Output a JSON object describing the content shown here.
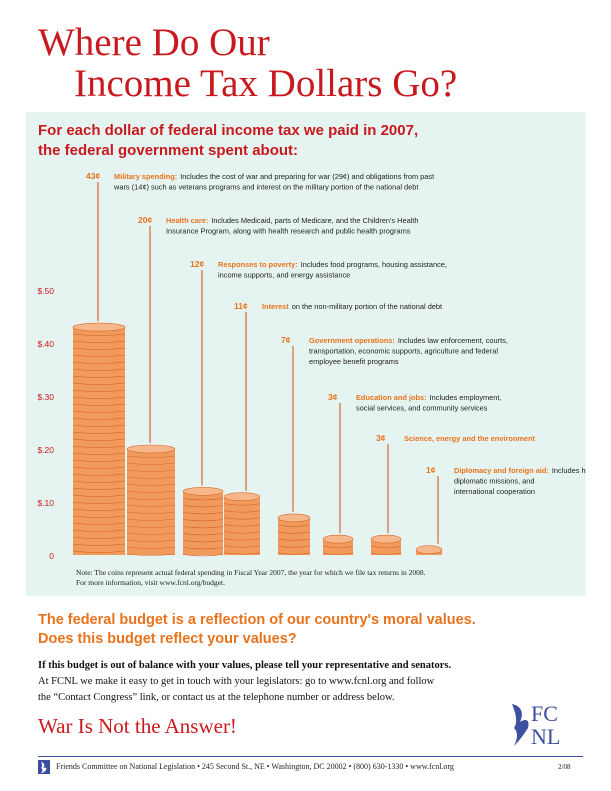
{
  "title": {
    "line1": "Where Do Our",
    "line2": "Income Tax Dollars Go?"
  },
  "subtitle": {
    "line1": "For each dollar of federal income tax we paid in 2007,",
    "line2": "the federal government spent about:"
  },
  "chart_data": {
    "type": "bar",
    "ylim": [
      0,
      0.5
    ],
    "yticks": [
      {
        "value": 0,
        "label": "0"
      },
      {
        "value": 0.1,
        "label": "$.10"
      },
      {
        "value": 0.2,
        "label": "$.20"
      },
      {
        "value": 0.3,
        "label": "$.30"
      },
      {
        "value": 0.4,
        "label": "$.40"
      },
      {
        "value": 0.5,
        "label": "$.50"
      }
    ],
    "bars": [
      {
        "value": 0.43,
        "amount": "43¢",
        "heading": "Military spending:",
        "desc": [
          "Includes the cost of war and preparing for war (29¢) and obligations from past",
          "wars (14¢) such as veterans programs and interest on the military portion of the national debt"
        ]
      },
      {
        "value": 0.2,
        "amount": "20¢",
        "heading": "Health care:",
        "desc": [
          "Includes Medicaid, parts of Medicare, and the Children's Health",
          "Insurance Program, along with health research and public health programs"
        ]
      },
      {
        "value": 0.12,
        "amount": "12¢",
        "heading": "Responses to poverty:",
        "desc": [
          "Includes food programs, housing assistance,",
          "income supports, and energy assistance"
        ]
      },
      {
        "value": 0.11,
        "amount": "11¢",
        "heading": "Interest",
        "desc": [
          "on the non-military portion of the national debt"
        ]
      },
      {
        "value": 0.07,
        "amount": "7¢",
        "heading": "Government operations:",
        "desc": [
          "Includes law enforcement, courts,",
          "transportation, economic supports, agriculture and federal",
          "employee benefit programs"
        ]
      },
      {
        "value": 0.03,
        "amount": "3¢",
        "heading": "Education and jobs:",
        "desc": [
          "Includes employment,",
          "social services, and community services"
        ]
      },
      {
        "value": 0.03,
        "amount": "3¢",
        "heading": "Science, energy and the environment",
        "desc": []
      },
      {
        "value": 0.01,
        "amount": "1¢",
        "heading": "Diplomacy and foreign aid:",
        "desc": [
          "Includes humanitarian aid,",
          "diplomatic missions, and",
          "international cooperation"
        ]
      }
    ],
    "colors": {
      "coin": "#f19a5c",
      "coin_edge": "#d4692e",
      "heading": "#e8731c",
      "axis_label": "#c8191e"
    }
  },
  "note": {
    "line1": "Note: The coins represent actual federal spending in Fiscal Year 2007, the year for which we file tax returns in 2008.",
    "line2": "For more information, visit www.fcnl.org/budget."
  },
  "values_text": {
    "line1": "The federal budget is a reflection of our country's moral values.",
    "line2": "Does this budget reflect your values?"
  },
  "body": {
    "bold_line": "If this budget is out of balance with your values, please tell your representative and senators.",
    "line2": "At FCNL we make it easy to get in touch with your legislators: go to www.fcnl.org and follow",
    "line3": "the “Contact Congress” link, or contact us at the telephone number or address below."
  },
  "slogan": "War Is Not the Answer!",
  "logo": {
    "line1": "FC",
    "line2": "NL"
  },
  "footer": {
    "text": "Friends Committee on National Legislation • 245 Second St., NE • Washington, DC 20002 • (800) 630-1330 • www.fcnl.org",
    "date": "2/08"
  },
  "colors": {
    "title_red": "#c8191e",
    "panel": "#e6f4f1",
    "brand_blue": "#3d4fa0"
  }
}
